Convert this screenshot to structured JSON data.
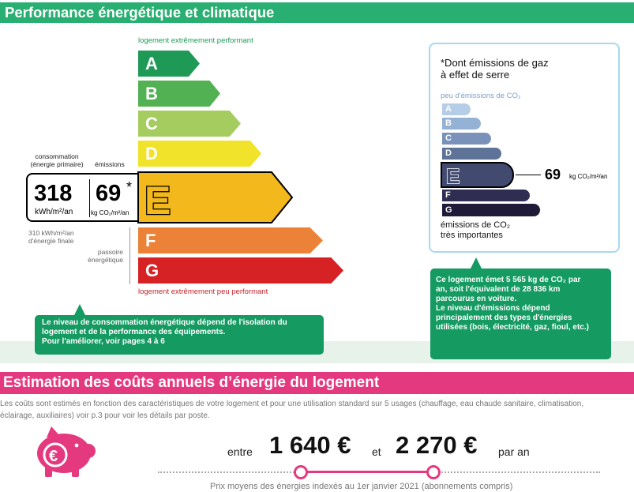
{
  "section1": {
    "title": "Performance énergétique et climatique",
    "top_label": "logement extrêmement performant",
    "bottom_label": "logement extrêmement peu performant",
    "classes": [
      "A",
      "B",
      "C",
      "D",
      "E",
      "F",
      "G"
    ],
    "class_colors": {
      "A": "#1e9a56",
      "B": "#52b153",
      "C": "#a4cc5e",
      "D": "#f0e32a",
      "E": "#f2b81c",
      "F": "#eb8237",
      "G": "#d62125"
    },
    "current_class": "E",
    "consumption_header": "consommation",
    "consumption_header2": "(énergie primaire)",
    "emissions_header": "émissions",
    "consumption_value": "318",
    "consumption_unit": "kWh/m²/an",
    "emissions_value": "69",
    "emissions_star": "*",
    "emissions_unit": "kg CO₂/m²/an",
    "final_energy_line1": "310 kWh/m²/an",
    "final_energy_line2": "d'énergie finale",
    "passoire_line1": "passoire",
    "passoire_line2": "énergétique",
    "bubble_text": [
      "Le niveau de consommation énergétique dépend de l'isolation du",
      "logement et de la performance des équipements.",
      "Pour l'améliorer, voir pages 4 à 6"
    ]
  },
  "ghg": {
    "note_line1": "*Dont émissions de gaz",
    "note_line2": "à effet de serre",
    "top_label": "peu d'émissions de CO₂",
    "classes": [
      "A",
      "B",
      "C",
      "D",
      "E",
      "F",
      "G"
    ],
    "class_colors": {
      "A": "#b5cde6",
      "B": "#93b2d6",
      "C": "#7a92ba",
      "D": "#5f7297",
      "E": "#424a6f",
      "F": "#2f2e52",
      "G": "#1f1a37"
    },
    "current_class": "E",
    "value": "69",
    "unit": "kg CO₂/m²/an",
    "bottom_label_line1": "émissions de CO₂",
    "bottom_label_line2": "très importantes",
    "bubble_text": [
      "Ce logement émet 5 565 kg de CO₂ par",
      "an, soit l'équivalent de 28 836 km",
      "parcourus en voiture.",
      "Le niveau d'émissions dépend",
      "principalement des types d'énergies",
      "utilisées (bois, électricité, gaz, fioul, etc.)"
    ]
  },
  "section2": {
    "title": "Estimation des coûts annuels d’énergie du logement",
    "intro_line1": "Les coûts sont estimés en fonction des caractéristiques de votre logement et pour une utilisation standard sur 5 usages (chauffage, eau chaude sanitaire, climatisation,",
    "intro_line2": "éclairage, auxiliaires) voir p.3 pour voir les détails par poste.",
    "word_between": "entre",
    "min_cost": "1 640 €",
    "word_and": "et",
    "max_cost": "2 270 €",
    "per_year": "par an",
    "footnote": "Prix moyens des énergies indexés au  1er janvier 2021 (abonnements compris)",
    "euro_symbol": "€"
  }
}
